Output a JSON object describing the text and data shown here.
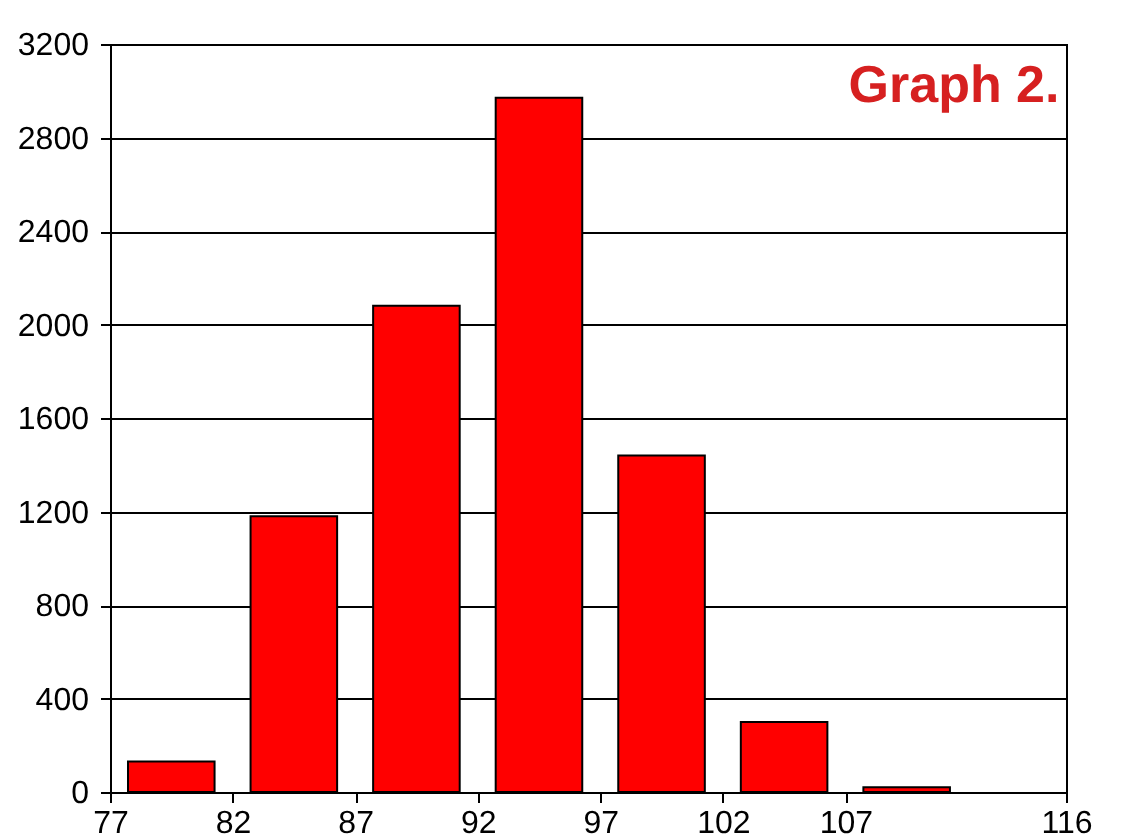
{
  "chart_data": {
    "type": "histogram",
    "title": "Graph 2.",
    "bins": [
      77,
      82,
      87,
      92,
      97,
      102,
      107,
      112
    ],
    "values": [
      130,
      1180,
      2080,
      2970,
      1440,
      300,
      20
    ],
    "color": "#ff0000",
    "xlim": [
      77,
      116
    ],
    "xticks": [
      77,
      82,
      87,
      92,
      97,
      102,
      107,
      116
    ],
    "ylim": [
      0,
      3200
    ],
    "yticks": [
      0,
      400,
      800,
      1200,
      1600,
      2000,
      2400,
      2800,
      3200
    ],
    "grid": "y"
  }
}
